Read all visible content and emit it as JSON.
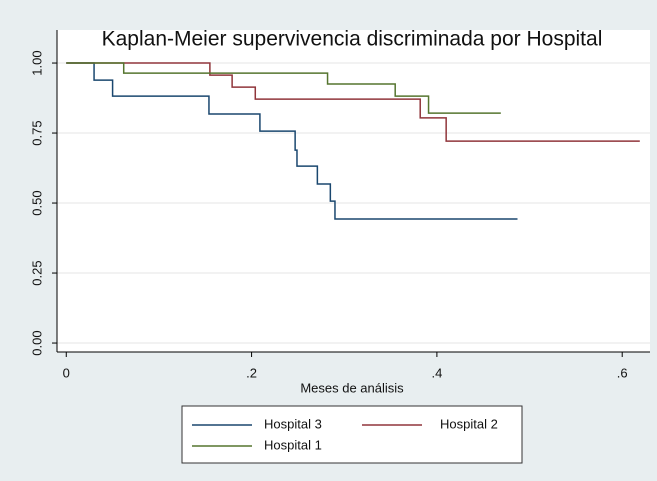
{
  "chart_data": {
    "type": "line",
    "step": true,
    "title": "Kaplan-Meier supervivencia discriminada por Hospital",
    "x_label": "Meses de análisis",
    "xlim": [
      -0.01,
      0.63
    ],
    "ylim": [
      -0.032,
      1.118
    ],
    "xticks": [
      0,
      {
        "value": 0.2,
        "label": ".2"
      },
      {
        "value": 0.4,
        "label": ".4"
      },
      {
        "value": 0.6,
        "label": ".6"
      }
    ],
    "yticks": [
      {
        "value": 0,
        "label": "0.00"
      },
      {
        "value": 0.25,
        "label": "0.25"
      },
      {
        "value": 0.5,
        "label": "0.50"
      },
      {
        "value": 0.75,
        "label": "0.75"
      },
      {
        "value": 1,
        "label": "1.00"
      }
    ],
    "grid": true,
    "series": [
      {
        "name": "Hospital 3",
        "color": "#1a476f",
        "x": [
          0,
          0.03,
          0.05,
          0.154,
          0.209,
          0.247,
          0.249,
          0.271,
          0.285,
          0.29,
          0.487
        ],
        "values": [
          1,
          0.939,
          0.882,
          0.818,
          0.757,
          0.689,
          0.632,
          0.568,
          0.507,
          0.443,
          0.443
        ]
      },
      {
        "name": "Hospital 2",
        "color": "#90353b",
        "x": [
          0,
          0.155,
          0.179,
          0.204,
          0.382,
          0.41,
          0.619
        ],
        "values": [
          1,
          0.957,
          0.914,
          0.871,
          0.804,
          0.721,
          0.721
        ]
      },
      {
        "name": "Hospital 1",
        "color": "#55752f",
        "x": [
          0,
          0.062,
          0.282,
          0.355,
          0.391,
          0.469
        ],
        "values": [
          1,
          0.964,
          0.925,
          0.882,
          0.821,
          0.821
        ]
      }
    ]
  }
}
